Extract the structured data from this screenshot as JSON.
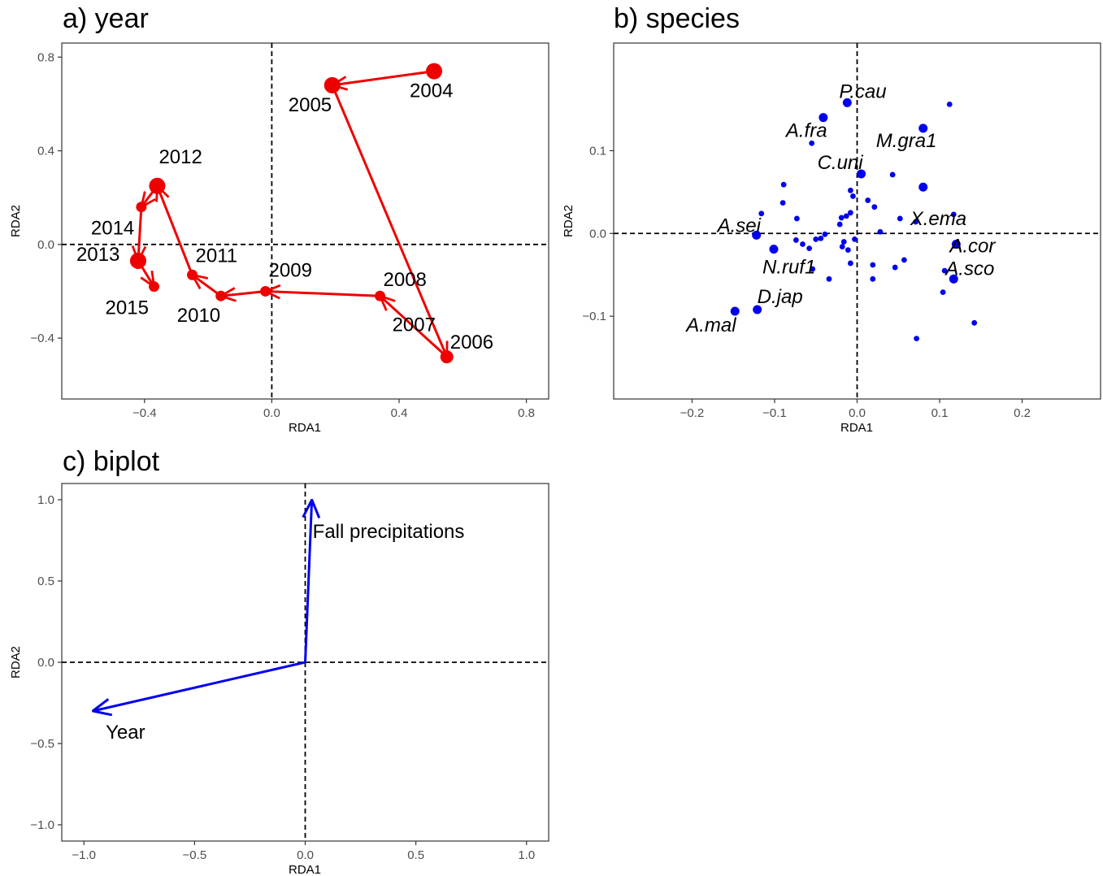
{
  "chart_data": [
    {
      "type": "line",
      "title": "a) year",
      "xlabel": "RDA1",
      "ylabel": "RDA2",
      "xlim": [
        -0.66,
        0.87
      ],
      "ylim": [
        -0.66,
        0.86
      ],
      "xticks": [
        -0.4,
        0.0,
        0.4,
        0.8
      ],
      "xtick_labels": [
        "−0.4",
        "0.0",
        "0.4",
        "0.8"
      ],
      "yticks": [
        -0.4,
        0.0,
        0.4,
        0.8
      ],
      "ytick_labels": [
        "−0.4",
        "0.0",
        "0.4",
        "0.8"
      ],
      "grid": false,
      "reference_lines": {
        "x": 0,
        "y": 0,
        "style": "dashed"
      },
      "color": "#ee0000",
      "points": [
        {
          "label": "2004",
          "x": 0.51,
          "y": 0.74,
          "size": "large"
        },
        {
          "label": "2005",
          "x": 0.19,
          "y": 0.68,
          "size": "large"
        },
        {
          "label": "2006",
          "x": 0.55,
          "y": -0.48,
          "size": "medium"
        },
        {
          "label": "2007",
          "x": 0.45,
          "y": -0.37,
          "size": "none"
        },
        {
          "label": "2008",
          "x": 0.34,
          "y": -0.22,
          "size": "small"
        },
        {
          "label": "2009",
          "x": -0.02,
          "y": -0.2,
          "size": "small"
        },
        {
          "label": "2010",
          "x": -0.16,
          "y": -0.22,
          "size": "small"
        },
        {
          "label": "2011",
          "x": -0.25,
          "y": -0.13,
          "size": "small"
        },
        {
          "label": "2012",
          "x": -0.36,
          "y": 0.25,
          "size": "large"
        },
        {
          "label": "2013",
          "x": -0.42,
          "y": -0.07,
          "size": "large"
        },
        {
          "label": "2014",
          "x": -0.41,
          "y": 0.16,
          "size": "small"
        },
        {
          "label": "2015",
          "x": -0.37,
          "y": -0.18,
          "size": "small"
        }
      ],
      "path_order": [
        "2004",
        "2005",
        "2006",
        "2008",
        "2009",
        "2010",
        "2011",
        "2012",
        "2014",
        "2013",
        "2015"
      ]
    },
    {
      "type": "scatter",
      "title": "b) species",
      "xlabel": "RDA1",
      "ylabel": "RDA2",
      "xlim": [
        -0.295,
        0.295
      ],
      "ylim": [
        -0.2,
        0.23
      ],
      "xticks": [
        -0.2,
        -0.1,
        0.0,
        0.1,
        0.2
      ],
      "xtick_labels": [
        "−0.2",
        "−0.1",
        "0.0",
        "0.1",
        "0.2"
      ],
      "yticks": [
        -0.1,
        0.0,
        0.1
      ],
      "ytick_labels": [
        "−0.1",
        "0.0",
        "0.1"
      ],
      "grid": false,
      "reference_lines": {
        "x": 0,
        "y": 0,
        "style": "dashed"
      },
      "color": "#0000ee",
      "labeled_species": [
        {
          "label": "P.cau",
          "x": -0.012,
          "y": 0.158
        },
        {
          "label": "A.fra",
          "x": -0.041,
          "y": 0.14
        },
        {
          "label": "M.gra1",
          "x": 0.08,
          "y": 0.127
        },
        {
          "label": "C.uni",
          "x": 0.005,
          "y": 0.072
        },
        {
          "label": "X.ema",
          "x": 0.08,
          "y": 0.056
        },
        {
          "label": "A.sei",
          "x": -0.122,
          "y": -0.002
        },
        {
          "label": "A.cor",
          "x": 0.12,
          "y": -0.013
        },
        {
          "label": "N.ruf1",
          "x": -0.101,
          "y": -0.019
        },
        {
          "label": "A.sco",
          "x": 0.117,
          "y": -0.055
        },
        {
          "label": "D.jap",
          "x": -0.121,
          "y": -0.092
        },
        {
          "label": "A.mal",
          "x": -0.148,
          "y": -0.094
        }
      ],
      "other_species": [
        {
          "x": 0.112,
          "y": 0.156
        },
        {
          "x": -0.055,
          "y": 0.109
        },
        {
          "x": 0.043,
          "y": 0.071
        },
        {
          "x": -0.089,
          "y": 0.059
        },
        {
          "x": -0.008,
          "y": 0.052
        },
        {
          "x": -0.005,
          "y": 0.045
        },
        {
          "x": 0.013,
          "y": 0.04
        },
        {
          "x": -0.09,
          "y": 0.037
        },
        {
          "x": 0.021,
          "y": 0.032
        },
        {
          "x": -0.116,
          "y": 0.024
        },
        {
          "x": 0.117,
          "y": 0.023
        },
        {
          "x": -0.008,
          "y": 0.025
        },
        {
          "x": -0.013,
          "y": 0.021
        },
        {
          "x": -0.019,
          "y": 0.019
        },
        {
          "x": 0.052,
          "y": 0.018
        },
        {
          "x": -0.073,
          "y": 0.018
        },
        {
          "x": 0.071,
          "y": 0.014
        },
        {
          "x": -0.021,
          "y": 0.011
        },
        {
          "x": 0.028,
          "y": 0.002
        },
        {
          "x": -0.039,
          "y": -0.001
        },
        {
          "x": -0.044,
          "y": -0.006
        },
        {
          "x": -0.05,
          "y": -0.007
        },
        {
          "x": -0.074,
          "y": -0.008
        },
        {
          "x": -0.003,
          "y": -0.007
        },
        {
          "x": -0.016,
          "y": -0.01
        },
        {
          "x": -0.066,
          "y": -0.013
        },
        {
          "x": -0.058,
          "y": -0.018
        },
        {
          "x": -0.018,
          "y": -0.016
        },
        {
          "x": -0.011,
          "y": -0.02
        },
        {
          "x": 0.057,
          "y": -0.032
        },
        {
          "x": -0.008,
          "y": -0.036
        },
        {
          "x": 0.019,
          "y": -0.038
        },
        {
          "x": 0.046,
          "y": -0.041
        },
        {
          "x": -0.054,
          "y": -0.043
        },
        {
          "x": 0.106,
          "y": -0.045
        },
        {
          "x": 0.019,
          "y": -0.055
        },
        {
          "x": -0.034,
          "y": -0.055
        },
        {
          "x": 0.104,
          "y": -0.071
        },
        {
          "x": 0.142,
          "y": -0.108
        },
        {
          "x": 0.072,
          "y": -0.127
        }
      ]
    },
    {
      "type": "biplot",
      "title": "c) biplot",
      "xlabel": "RDA1",
      "ylabel": "RDA2",
      "xlim": [
        -1.1,
        1.1
      ],
      "ylim": [
        -1.1,
        1.1
      ],
      "xticks": [
        -1.0,
        -0.5,
        0.0,
        0.5,
        1.0
      ],
      "xtick_labels": [
        "−1.0",
        "−0.5",
        "0.0",
        "0.5",
        "1.0"
      ],
      "yticks": [
        -1.0,
        -0.5,
        0.0,
        0.5,
        1.0
      ],
      "ytick_labels": [
        "−1.0",
        "−0.5",
        "0.0",
        "0.5",
        "1.0"
      ],
      "grid": false,
      "reference_lines": {
        "x": 0,
        "y": 0,
        "style": "dashed"
      },
      "color": "#0000ee",
      "arrows": [
        {
          "label": "Fall precipitations",
          "x": 0.03,
          "y": 1.0
        },
        {
          "label": "Year",
          "x": -0.96,
          "y": -0.3
        }
      ]
    }
  ]
}
